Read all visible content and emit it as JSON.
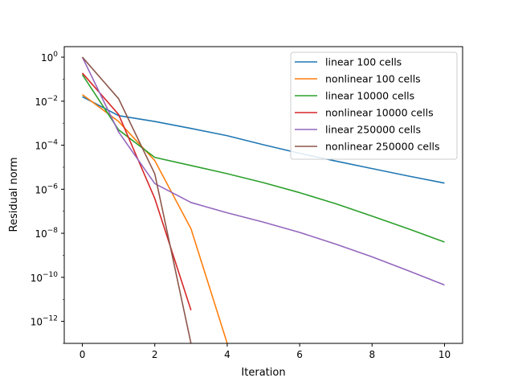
{
  "chart_data": {
    "type": "line",
    "title": "",
    "xlabel": "Iteration",
    "ylabel": "Residual norm",
    "xlim": [
      -0.5,
      10.5
    ],
    "ylim": [
      1e-13,
      3
    ],
    "y_scale": "log",
    "grid": false,
    "legend_position": "top-right",
    "x_ticks": [
      0,
      2,
      4,
      6,
      8,
      10
    ],
    "y_ticks": [
      {
        "value": 1,
        "base": "10",
        "exp": "0"
      },
      {
        "value": 0.01,
        "base": "10",
        "exp": "−2"
      },
      {
        "value": 0.0001,
        "base": "10",
        "exp": "−4"
      },
      {
        "value": 1e-06,
        "base": "10",
        "exp": "−6"
      },
      {
        "value": 1e-08,
        "base": "10",
        "exp": "−8"
      },
      {
        "value": 1e-10,
        "base": "10",
        "exp": "−10"
      },
      {
        "value": 1e-12,
        "base": "10",
        "exp": "−12"
      }
    ],
    "series": [
      {
        "name": "linear 100 cells",
        "color": "#1f77b4",
        "x": [
          0,
          1,
          2,
          3,
          4,
          5,
          6,
          7,
          8,
          9,
          10
        ],
        "y": [
          0.016,
          0.0022,
          0.0012,
          0.00058,
          0.00027,
          0.000105,
          4.3e-05,
          1.9e-05,
          8.7e-06,
          4e-06,
          1.9e-06
        ]
      },
      {
        "name": "nonlinear 100 cells",
        "color": "#ff7f0e",
        "x": [
          0,
          1,
          2,
          3,
          4
        ],
        "y": [
          0.02,
          0.0012,
          2e-05,
          1.6e-08,
          1e-13
        ]
      },
      {
        "name": "linear 10000 cells",
        "color": "#2ca02c",
        "x": [
          0,
          1,
          2,
          3,
          4,
          5,
          6,
          7,
          8,
          9,
          10
        ],
        "y": [
          0.16,
          0.0005,
          2.8e-05,
          1.2e-05,
          5.1e-06,
          2e-06,
          7e-07,
          2.2e-07,
          6e-08,
          1.6e-08,
          4e-09
        ]
      },
      {
        "name": "nonlinear 10000 cells",
        "color": "#d62728",
        "x": [
          0,
          1,
          2,
          3
        ],
        "y": [
          0.19,
          0.0025,
          3.8e-07,
          3.2e-12
        ]
      },
      {
        "name": "linear 250000 cells",
        "color": "#9467bd",
        "x": [
          0,
          1,
          2,
          3,
          4,
          5,
          6,
          7,
          8,
          9,
          10
        ],
        "y": [
          1.0,
          0.0004,
          1.8e-06,
          2.5e-07,
          8.5e-08,
          3.2e-08,
          1.1e-08,
          3.2e-09,
          8.5e-10,
          2e-10,
          4.5e-11
        ]
      },
      {
        "name": "nonlinear 250000 cells",
        "color": "#8c564b",
        "x": [
          0,
          1,
          2,
          3
        ],
        "y": [
          1.0,
          0.013,
          5e-06,
          1e-13
        ]
      }
    ]
  }
}
